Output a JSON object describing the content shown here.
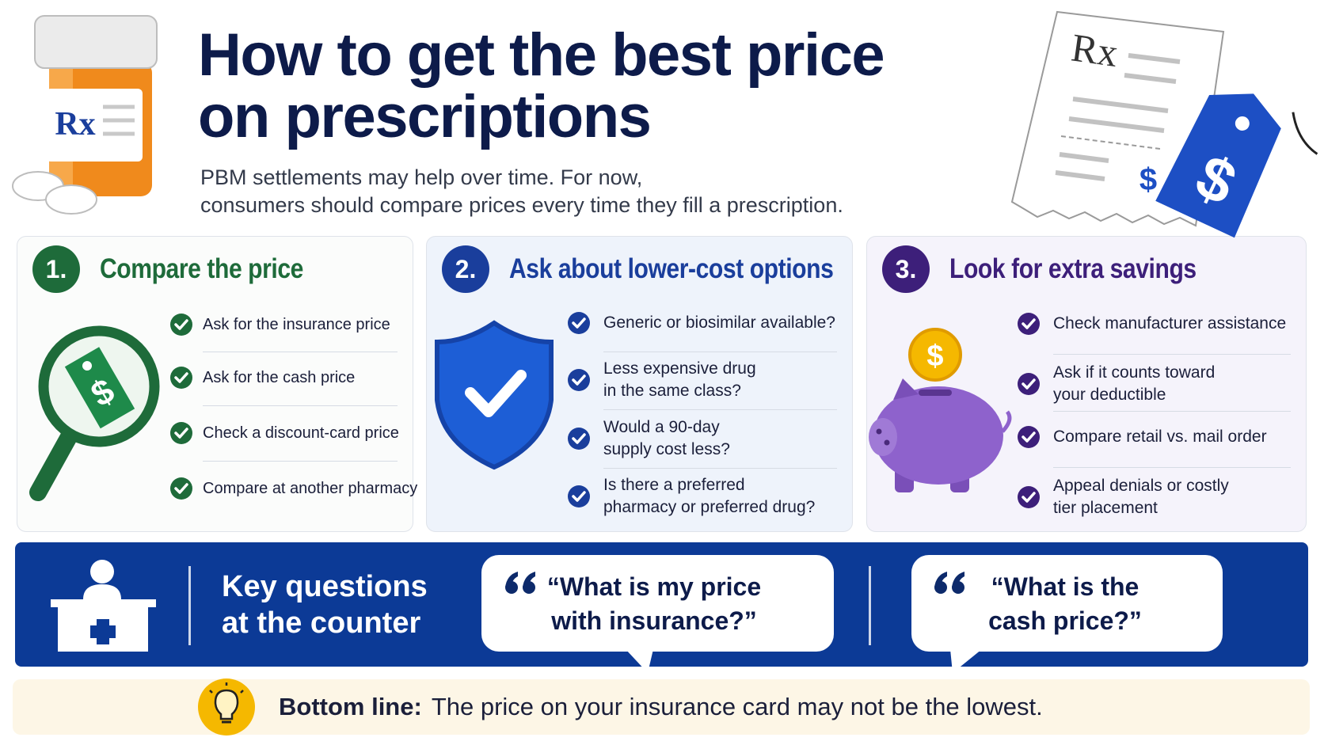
{
  "header": {
    "title_lines": [
      "How to get the best price",
      "on prescriptions"
    ],
    "subtitle_lines": [
      "PBM settlements may help over time. For now,",
      "consumers should compare prices every time they fill a prescription."
    ]
  },
  "icons": {
    "rx": "Rx",
    "dollar": "$"
  },
  "cards": [
    {
      "number": "1.",
      "title": "Compare the price",
      "color": "#1e6b3a",
      "items": [
        [
          "Ask for the insurance price"
        ],
        [
          "Ask for the cash price"
        ],
        [
          "Check a discount-card price"
        ],
        [
          "Compare at another pharmacy"
        ]
      ]
    },
    {
      "number": "2.",
      "title": "Ask about lower-cost options",
      "color": "#1a3e9c",
      "items": [
        [
          "Generic or biosimilar available?"
        ],
        [
          "Less expensive drug",
          "in the same class?"
        ],
        [
          "Would a 90-day",
          "supply cost less?"
        ],
        [
          "Is there a preferred",
          "pharmacy or preferred drug?"
        ]
      ]
    },
    {
      "number": "3.",
      "title": "Look for extra savings",
      "color": "#3d1f7a",
      "items": [
        [
          "Check manufacturer assistance"
        ],
        [
          "Ask if it counts toward",
          "your deductible"
        ],
        [
          "Compare retail vs. mail order"
        ],
        [
          "Appeal denials or costly",
          "tier placement"
        ]
      ]
    }
  ],
  "counter": {
    "title_lines": [
      "Key questions",
      "at the counter"
    ],
    "questions": [
      [
        "“What is my price",
        "with insurance?”"
      ],
      [
        "“What is the",
        "cash price?”"
      ]
    ]
  },
  "bottom_line": {
    "label": "Bottom line:",
    "text": "The price on your insurance card may not be the lowest."
  }
}
